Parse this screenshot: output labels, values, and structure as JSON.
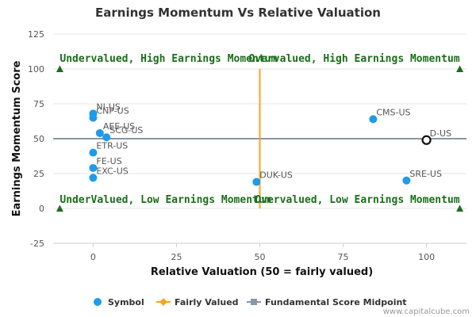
{
  "chart_data": {
    "type": "scatter",
    "title": "Earnings Momentum Vs Relative Valuation",
    "xlabel": "Relative Valuation (50 = fairly valued)",
    "ylabel": "Earnings Momentum Score",
    "xlim": [
      -12,
      112
    ],
    "ylim": [
      -25,
      125
    ],
    "x_ticks": [
      0,
      25,
      50,
      75,
      100
    ],
    "y_ticks": [
      -25,
      0,
      25,
      50,
      75,
      100,
      125
    ],
    "fairly_valued_x": 50,
    "midpoint_y": 50,
    "points": [
      {
        "label": "NI-US",
        "x": 0,
        "y": 68
      },
      {
        "label": "CNP-US",
        "x": 0,
        "y": 65
      },
      {
        "label": "AEE-US",
        "x": 2,
        "y": 54
      },
      {
        "label": "SCG-US",
        "x": 4,
        "y": 51
      },
      {
        "label": "ETR-US",
        "x": 0,
        "y": 40
      },
      {
        "label": "FE-US",
        "x": 0,
        "y": 29
      },
      {
        "label": "EXC-US",
        "x": 0,
        "y": 22
      },
      {
        "label": "DUK-US",
        "x": 49,
        "y": 19
      },
      {
        "label": "CMS-US",
        "x": 84,
        "y": 64
      },
      {
        "label": "SRE-US",
        "x": 94,
        "y": 20
      },
      {
        "label": "D-US",
        "x": 100,
        "y": 49,
        "highlighted": true
      }
    ],
    "quadrant_labels": [
      {
        "text": "Undervalued, High Earnings Momentum",
        "x": -10,
        "y": 105
      },
      {
        "text": "Overvalued, High Earnings Momentum",
        "x": 110,
        "y": 105
      },
      {
        "text": "UnderValued, Low Earnings Momentum",
        "x": -10,
        "y": 4
      },
      {
        "text": "Overvalued, Low Earnings Momentum",
        "x": 110,
        "y": 4
      }
    ],
    "corner_markers": [
      {
        "x": -10,
        "y": 100
      },
      {
        "x": 110,
        "y": 100
      },
      {
        "x": -10,
        "y": 0
      },
      {
        "x": 110,
        "y": 0
      }
    ],
    "legend": [
      "Symbol",
      "Fairly Valued",
      "Fundamental Score Midpoint"
    ],
    "legend_position": "bottom",
    "grid": true,
    "colors": {
      "symbol": "#1e9be9",
      "fairly_valued": "#f5a623",
      "midpoint": "#8896a8",
      "grid": "#e6e6e6",
      "quadrant_text": "#1a6e1a",
      "marker": "#1f6b1f"
    }
  },
  "credit": "www.capitalcube.com"
}
